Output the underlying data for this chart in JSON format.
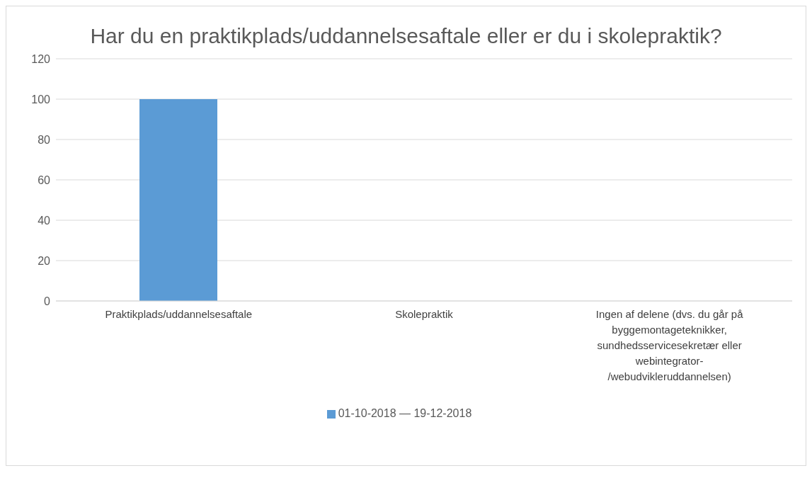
{
  "chart_data": {
    "type": "bar",
    "title": "Har du en praktikplads/uddannelsesaftale eller er du i skolepraktik?",
    "categories": [
      "Praktikplads/uddannelsesaftale",
      "Skolepraktik",
      "Ingen af delene (dvs. du går på byggemontageteknikker, sundhedsservicesekretær eller webintegrator-/webudvikleruddannelsen)"
    ],
    "series": [
      {
        "name": "01-10-2018 — 19-12-2018",
        "color": "#5b9bd5",
        "values": [
          100,
          0,
          0
        ]
      }
    ],
    "ylim": [
      0,
      120
    ],
    "yticks": [
      0,
      20,
      40,
      60,
      80,
      100,
      120
    ],
    "grid": "y",
    "legend": "bottom"
  }
}
